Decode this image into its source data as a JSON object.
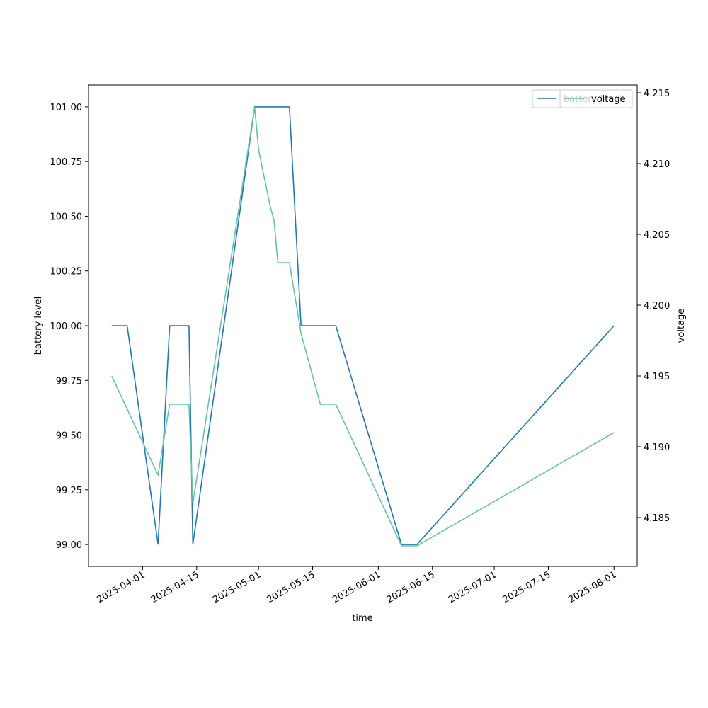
{
  "chart_data": {
    "type": "line",
    "xlabel": "time",
    "ylabel": "battery level",
    "y2label": "voltage",
    "xlim": [
      "2025-03-18",
      "2025-08-07"
    ],
    "xticks": [
      "2025-04-01",
      "2025-04-15",
      "2025-05-01",
      "2025-05-15",
      "2025-06-01",
      "2025-06-15",
      "2025-07-01",
      "2025-07-15",
      "2025-08-01"
    ],
    "ylim": [
      98.9,
      101.1
    ],
    "yticks": [
      {
        "value": 99,
        "label": "99.00"
      },
      {
        "value": 99.25,
        "label": "99.25"
      },
      {
        "value": 99.5,
        "label": "99.50"
      },
      {
        "value": 99.75,
        "label": "99.75"
      },
      {
        "value": 100,
        "label": "100.00"
      },
      {
        "value": 100.25,
        "label": "100.25"
      },
      {
        "value": 100.5,
        "label": "100.50"
      },
      {
        "value": 100.75,
        "label": "100.75"
      },
      {
        "value": 101,
        "label": "101.00"
      }
    ],
    "y2lim": [
      4.18155,
      4.21555
    ],
    "y2ticks": [
      4.185,
      {
        "value": 4.19,
        "label": "4.190"
      },
      4.195,
      {
        "value": 4.2,
        "label": "4.200"
      },
      4.205,
      {
        "value": 4.21,
        "label": "4.210"
      },
      4.215
    ],
    "legend": "upper right",
    "series": [
      {
        "name": "battery level",
        "color": "#1f77b4",
        "axis": "y",
        "x": [
          "2025-03-24",
          "2025-03-28",
          "2025-04-05",
          "2025-04-08",
          "2025-04-13",
          "2025-04-14",
          "2025-04-30",
          "2025-05-09",
          "2025-05-12",
          "2025-05-21",
          "2025-06-07",
          "2025-06-11",
          "2025-08-01"
        ],
        "values": [
          100,
          100,
          99,
          100,
          100,
          99,
          101,
          101,
          100,
          100,
          99,
          99,
          100
        ]
      },
      {
        "name": "voltage",
        "color": "#66c2a5",
        "axis": "y2",
        "x": [
          "2025-03-24",
          "2025-04-05",
          "2025-04-08",
          "2025-04-13",
          "2025-04-14",
          "2025-04-30",
          "2025-05-01",
          "2025-05-04",
          "2025-05-05",
          "2025-05-06",
          "2025-05-09",
          "2025-05-12",
          "2025-05-17",
          "2025-05-21",
          "2025-06-07",
          "2025-06-11",
          "2025-08-01"
        ],
        "values": [
          4.195,
          4.188,
          4.193,
          4.193,
          4.186,
          4.214,
          4.211,
          4.207,
          4.206,
          4.203,
          4.203,
          4.198,
          4.193,
          4.193,
          4.183,
          4.183,
          4.191
        ]
      }
    ]
  }
}
